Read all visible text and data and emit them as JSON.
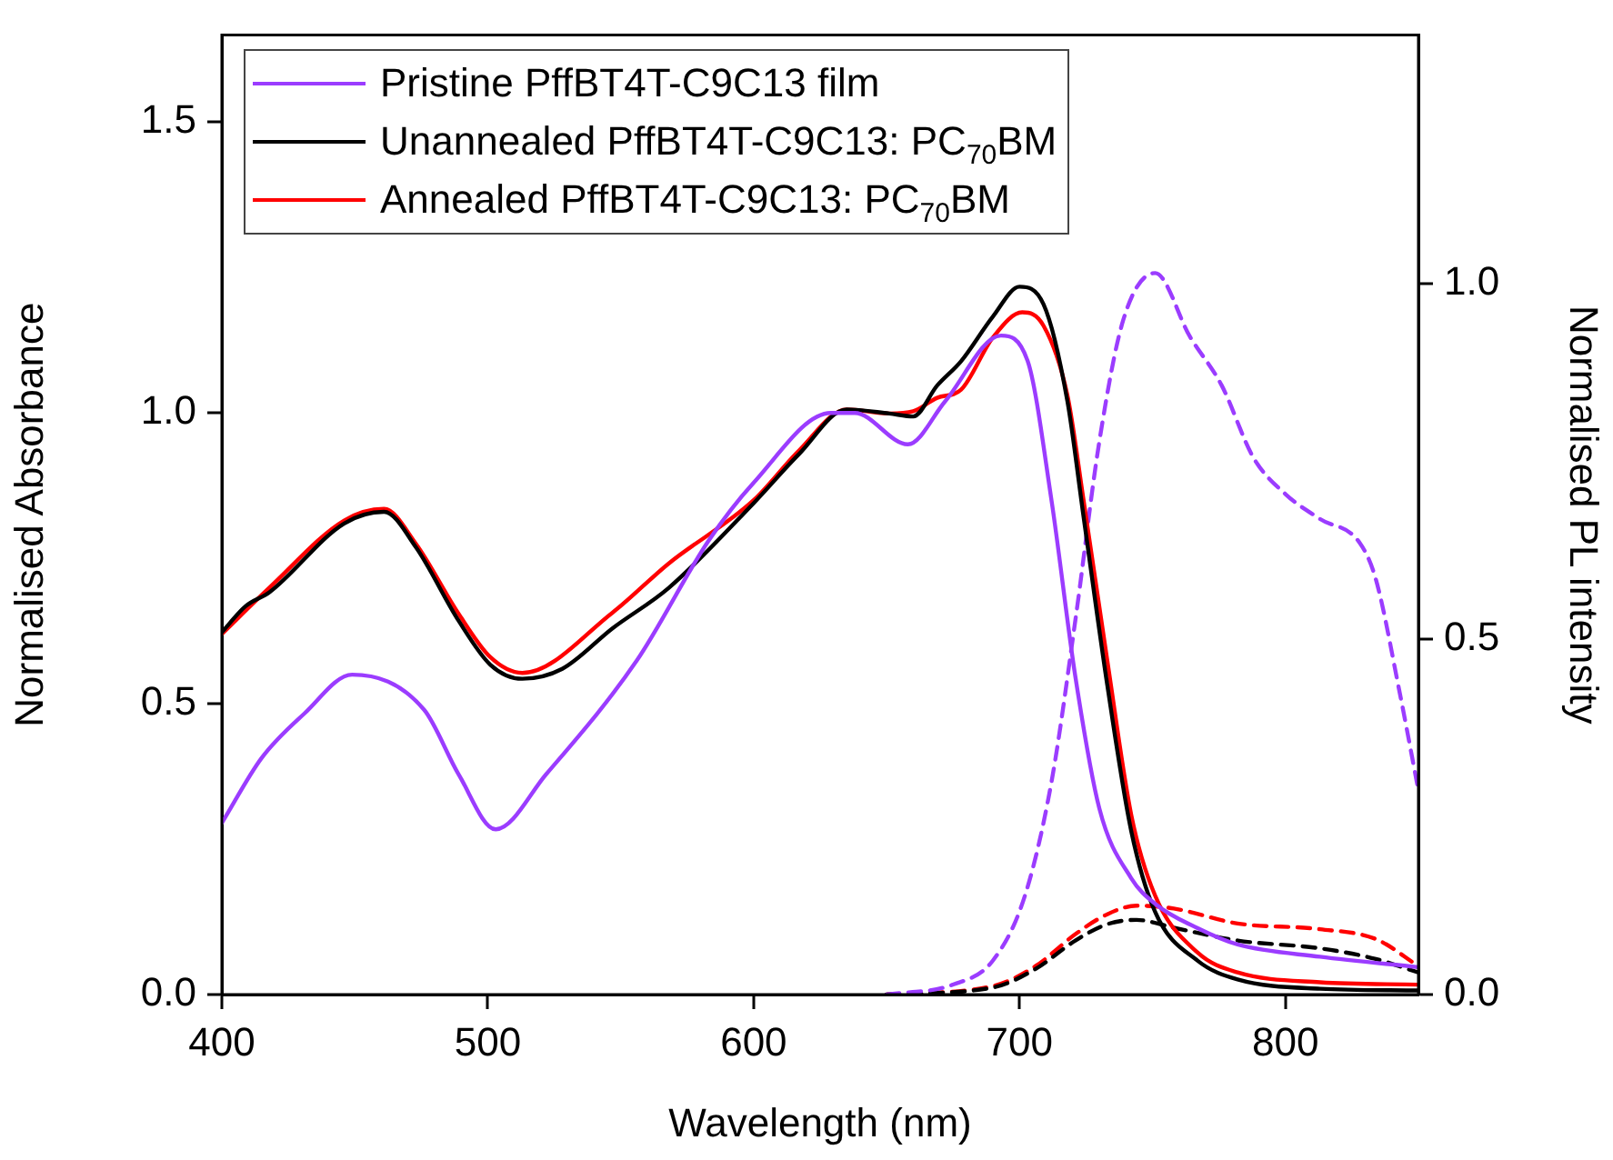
{
  "chart_data": {
    "type": "line",
    "xlabel": "Wavelength (nm)",
    "ylabel": "Normalised Absorbance",
    "y2label": "Normalised PL intensity",
    "xlim": [
      400,
      850
    ],
    "xticks": [
      400,
      500,
      600,
      700,
      800
    ],
    "ylim": [
      0,
      1.65
    ],
    "yticks": [
      {
        "value": 0,
        "label": "0.0"
      },
      0.5,
      {
        "value": 1,
        "label": "1.0"
      },
      1.5
    ],
    "y2lim": [
      0,
      1.35
    ],
    "y2ticks": [
      {
        "value": 0,
        "label": "0.0"
      },
      0.5,
      {
        "value": 1,
        "label": "1.0"
      }
    ],
    "grid": false,
    "legend": "top left",
    "marker": "none",
    "series": [
      {
        "name": "Pristine PffBT4T-C9C13 film",
        "color": "#9b3cff",
        "line_style": "solid",
        "x": [
          400,
          415,
          431,
          449,
          476,
          489,
          503,
          522,
          556,
          583,
          600,
          629,
          638,
          658,
          672,
          693,
          703,
          712,
          721,
          730,
          742,
          751,
          767,
          782,
          813,
          850
        ],
        "values": [
          0.295,
          0.407,
          0.483,
          0.55,
          0.49,
          0.379,
          0.284,
          0.379,
          0.574,
          0.78,
          0.88,
          1.0,
          1.0,
          0.946,
          1.02,
          1.133,
          1.09,
          0.85,
          0.546,
          0.32,
          0.2,
          0.156,
          0.114,
          0.086,
          0.065,
          0.047
        ]
      },
      {
        "name": "Unannealed PffBT4T-C9C13: PC$_{70}$BM",
        "color": "#000000",
        "line_style": "solid",
        "x": [
          400,
          409,
          418,
          446,
          461,
          473,
          489,
          501,
          513,
          528,
          547,
          568,
          600,
          617,
          635,
          651,
          660,
          669,
          678,
          690,
          700,
          709,
          718,
          724,
          733,
          742,
          751,
          767,
          782,
          813,
          850
        ],
        "values": [
          0.623,
          0.668,
          0.692,
          0.81,
          0.83,
          0.769,
          0.643,
          0.567,
          0.543,
          0.56,
          0.63,
          0.699,
          0.845,
          0.929,
          1.006,
          0.999,
          0.994,
          1.047,
          1.089,
          1.166,
          1.217,
          1.187,
          1.02,
          0.824,
          0.532,
          0.281,
          0.142,
          0.058,
          0.026,
          0.01,
          0.007
        ]
      },
      {
        "name": "Annealed PffBT4T-C9C13: PC$_{70}$BM",
        "color": "#ff0000",
        "line_style": "solid",
        "x": [
          400,
          418,
          446,
          461,
          473,
          489,
          501,
          513,
          547,
          568,
          600,
          617,
          635,
          651,
          660,
          669,
          678,
          690,
          701,
          709,
          718,
          724,
          733,
          742,
          751,
          767,
          782,
          813,
          850
        ],
        "values": [
          0.62,
          0.7,
          0.815,
          0.835,
          0.775,
          0.655,
          0.58,
          0.553,
          0.657,
          0.741,
          0.85,
          0.935,
          1.006,
          0.999,
          1.003,
          1.026,
          1.04,
          1.13,
          1.173,
          1.15,
          1.03,
          0.852,
          0.574,
          0.309,
          0.17,
          0.072,
          0.038,
          0.021,
          0.017
        ]
      },
      {
        "color": "#9b3cff",
        "line_style": "dashed",
        "axis": "y2",
        "x": [
          650,
          675,
          690,
          702,
          712,
          721,
          730,
          739,
          751,
          764,
          776,
          788,
          800,
          813,
          828,
          834,
          843,
          850
        ],
        "values": [
          0,
          0.014,
          0.048,
          0.139,
          0.299,
          0.527,
          0.778,
          0.949,
          1.015,
          0.926,
          0.857,
          0.755,
          0.704,
          0.669,
          0.635,
          0.584,
          0.424,
          0.287
        ]
      },
      {
        "color": "#000000",
        "line_style": "dashed",
        "axis": "y2",
        "x": [
          650,
          690,
          706,
          721,
          733,
          744,
          758,
          782,
          813,
          834,
          850
        ],
        "values": [
          0,
          0.01,
          0.036,
          0.076,
          0.099,
          0.105,
          0.094,
          0.076,
          0.065,
          0.05,
          0.031
        ]
      },
      {
        "color": "#ff0000",
        "line_style": "dashed",
        "axis": "y2",
        "x": [
          650,
          690,
          706,
          721,
          733,
          744,
          758,
          782,
          813,
          834,
          850
        ],
        "values": [
          0,
          0.012,
          0.04,
          0.085,
          0.113,
          0.125,
          0.121,
          0.1,
          0.092,
          0.078,
          0.04
        ]
      }
    ]
  }
}
